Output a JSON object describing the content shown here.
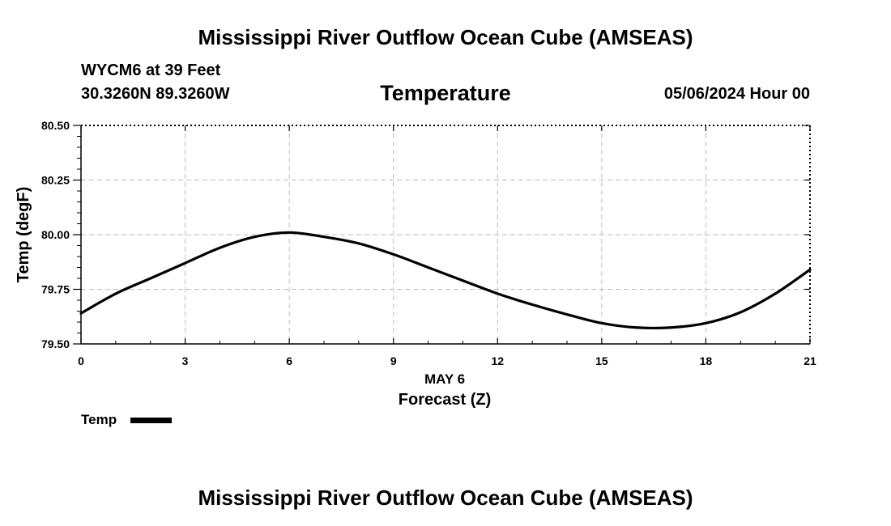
{
  "header": {
    "title": "Mississippi River Outflow Ocean Cube (AMSEAS)",
    "station": "WYCM6 at 39 Feet",
    "coordinates": "30.3260N  89.3260W",
    "variable": "Temperature",
    "datetime": "05/06/2024 Hour 00"
  },
  "legend": {
    "label": "Temp",
    "color": "#000000"
  },
  "footer": {
    "title": "Mississippi River Outflow Ocean Cube (AMSEAS)"
  },
  "chart_data": {
    "type": "line",
    "title": "Temperature",
    "xlabel": "Forecast (Z)",
    "xsublabel": "MAY 6",
    "ylabel": "Temp (degF)",
    "xlim": [
      0,
      21
    ],
    "ylim": [
      79.5,
      80.5
    ],
    "x_ticks": [
      0,
      3,
      6,
      9,
      12,
      15,
      18,
      21
    ],
    "y_ticks": [
      79.5,
      79.75,
      80.0,
      80.25,
      80.5
    ],
    "y_tick_labels": [
      "79.50",
      "79.75",
      "80.00",
      "80.25",
      "80.50"
    ],
    "grid": true,
    "legend_position": "bottom-left",
    "series": [
      {
        "name": "Temp",
        "color": "#000000",
        "x": [
          0,
          1,
          2,
          3,
          4,
          5,
          6,
          7,
          8,
          9,
          10,
          11,
          12,
          13,
          14,
          15,
          16,
          17,
          18,
          19,
          20,
          21
        ],
        "values": [
          79.64,
          79.73,
          79.8,
          79.87,
          79.94,
          79.99,
          80.01,
          79.99,
          79.96,
          79.91,
          79.85,
          79.79,
          79.73,
          79.68,
          79.635,
          79.595,
          79.575,
          79.575,
          79.595,
          79.645,
          79.73,
          79.84
        ]
      }
    ]
  }
}
